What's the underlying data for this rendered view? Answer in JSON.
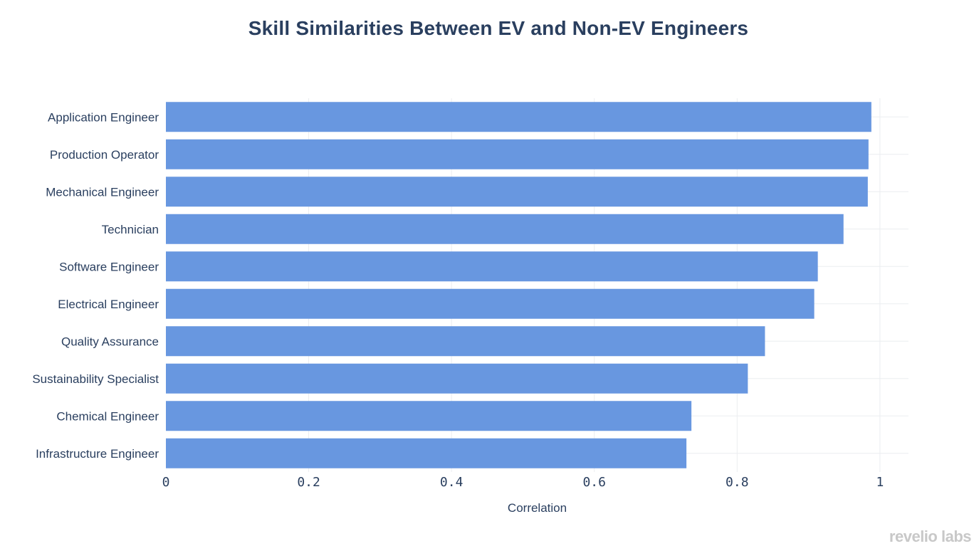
{
  "chart_data": {
    "type": "bar",
    "orientation": "horizontal",
    "title": "Skill Similarities Between EV and Non-EV Engineers",
    "xlabel": "Correlation",
    "ylabel": "",
    "xlim": [
      0,
      1.04
    ],
    "xticks": [
      0,
      0.2,
      0.4,
      0.6,
      0.8,
      1
    ],
    "xtick_labels": [
      "0",
      "0.2",
      "0.4",
      "0.6",
      "0.8",
      "1"
    ],
    "grid": true,
    "bar_color": "#6897e0",
    "categories": [
      "Application Engineer",
      "Production Operator",
      "Mechanical Engineer",
      "Technician",
      "Software Engineer",
      "Electrical Engineer",
      "Quality Assurance",
      "Sustainability Specialist",
      "Chemical Engineer",
      "Infrastructure Engineer"
    ],
    "values": [
      0.988,
      0.984,
      0.983,
      0.949,
      0.913,
      0.908,
      0.839,
      0.815,
      0.736,
      0.729
    ]
  },
  "watermark": "revelio labs"
}
